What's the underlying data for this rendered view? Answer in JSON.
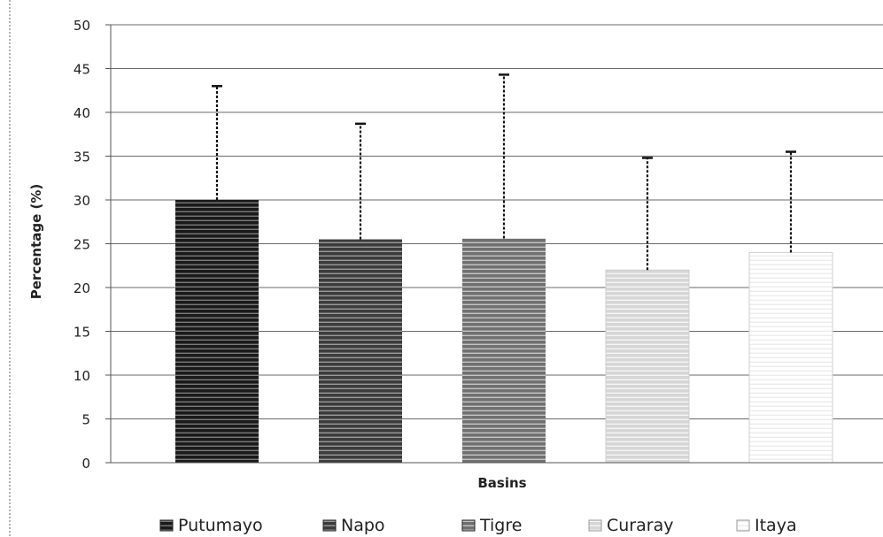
{
  "chart_data": {
    "type": "bar",
    "title": "",
    "xlabel": "Basins",
    "ylabel": "Percentage (%)",
    "ylim": [
      0,
      50
    ],
    "yticks": [
      0,
      5,
      10,
      15,
      20,
      25,
      30,
      35,
      40,
      45,
      50
    ],
    "grid": true,
    "legend_position": "bottom",
    "categories": [
      "Putumayo",
      "Napo",
      "Tigre",
      "Curaray",
      "Itaya"
    ],
    "values": [
      30,
      25.5,
      25.6,
      22,
      24
    ],
    "error_upper": [
      43,
      38.7,
      44.3,
      34.8,
      35.5
    ],
    "colors": [
      "#1a1a1a",
      "#3a3a3a",
      "#6e6e6e",
      "#d8d8d8",
      "#f2f2f2"
    ],
    "legend": [
      "Putumayo",
      "Napo",
      "Tigre",
      "Curaray",
      "Itaya"
    ]
  }
}
